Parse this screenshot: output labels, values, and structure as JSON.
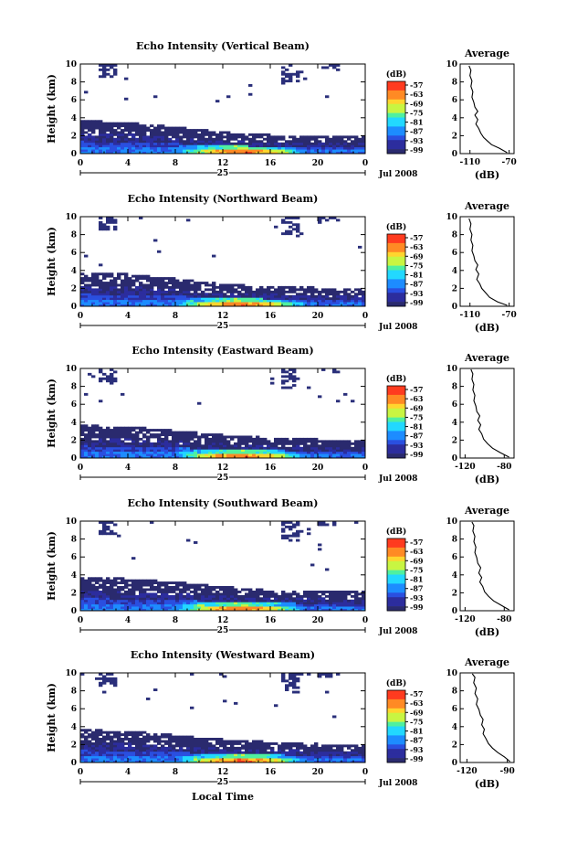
{
  "chart_data": [
    {
      "type": "heatmap",
      "title": "Echo Intensity (Vertical Beam)",
      "ylabel": "Height (km)",
      "x_ticks": [
        "0",
        "4",
        "8",
        "12",
        "16",
        "20",
        "0"
      ],
      "y_ticks": [
        "0",
        "2",
        "4",
        "6",
        "8",
        "10"
      ],
      "xlim": [
        0,
        24
      ],
      "ylim": [
        0,
        10
      ],
      "date_day": "25",
      "date_label": "Jul 2008",
      "colorbar": {
        "label": "(dB)",
        "ticks": [
          "-57",
          "-63",
          "-69",
          "-75",
          "-81",
          "-87",
          "-93",
          "-99"
        ]
      },
      "layer_tops_km": [
        3.6,
        3.4,
        2.9,
        2.3,
        2.0,
        2.0,
        2.0
      ],
      "average_profile": {
        "title": "Average",
        "xlabel": "(dB)",
        "x_ticks": [
          "-110",
          "-70"
        ],
        "y_ticks": [
          "0",
          "2",
          "4",
          "6",
          "8",
          "10"
        ],
        "xlim": [
          -120,
          -65
        ],
        "points": [
          [
            -72,
            0.1
          ],
          [
            -80,
            0.6
          ],
          [
            -88,
            1.0
          ],
          [
            -92,
            1.4
          ],
          [
            -96,
            1.8
          ],
          [
            -99,
            2.3
          ],
          [
            -101,
            2.8
          ],
          [
            -104,
            3.3
          ],
          [
            -102,
            3.8
          ],
          [
            -105,
            4.3
          ],
          [
            -102,
            4.7
          ],
          [
            -105,
            5.2
          ],
          [
            -106,
            5.7
          ],
          [
            -108,
            6.3
          ],
          [
            -107,
            6.9
          ],
          [
            -109,
            7.5
          ],
          [
            -108,
            8.1
          ],
          [
            -110,
            8.7
          ],
          [
            -109,
            9.3
          ],
          [
            -111,
            9.8
          ]
        ]
      }
    },
    {
      "type": "heatmap",
      "title": "Echo Intensity (Northward Beam)",
      "ylabel": "Height (km)",
      "x_ticks": [
        "0",
        "4",
        "8",
        "12",
        "16",
        "20",
        "0"
      ],
      "y_ticks": [
        "0",
        "2",
        "4",
        "6",
        "8",
        "10"
      ],
      "xlim": [
        0,
        24
      ],
      "ylim": [
        0,
        10
      ],
      "date_day": "25",
      "date_label": "Jul 2008",
      "colorbar": {
        "label": "(dB)",
        "ticks": [
          "-57",
          "-63",
          "-69",
          "-75",
          "-81",
          "-87",
          "-93",
          "-99"
        ]
      },
      "layer_tops_km": [
        3.6,
        3.5,
        3.0,
        2.4,
        2.1,
        2.0,
        1.9
      ],
      "average_profile": {
        "title": "Average",
        "xlabel": "(dB)",
        "x_ticks": [
          "-110",
          "-70"
        ],
        "y_ticks": [
          "0",
          "2",
          "4",
          "6",
          "8",
          "10"
        ],
        "xlim": [
          -120,
          -65
        ],
        "points": [
          [
            -72,
            0.1
          ],
          [
            -82,
            0.5
          ],
          [
            -90,
            1.0
          ],
          [
            -94,
            1.5
          ],
          [
            -98,
            2.0
          ],
          [
            -100,
            2.5
          ],
          [
            -103,
            3.0
          ],
          [
            -101,
            3.6
          ],
          [
            -104,
            4.1
          ],
          [
            -102,
            4.6
          ],
          [
            -105,
            5.1
          ],
          [
            -106,
            5.6
          ],
          [
            -108,
            6.2
          ],
          [
            -107,
            6.8
          ],
          [
            -109,
            7.4
          ],
          [
            -108,
            8.0
          ],
          [
            -110,
            8.6
          ],
          [
            -109,
            9.2
          ],
          [
            -111,
            9.8
          ]
        ]
      }
    },
    {
      "type": "heatmap",
      "title": "Echo Intensity (Eastward Beam)",
      "ylabel": "Height (km)",
      "x_ticks": [
        "0",
        "4",
        "8",
        "12",
        "16",
        "20",
        "0"
      ],
      "y_ticks": [
        "0",
        "2",
        "4",
        "6",
        "8",
        "10"
      ],
      "xlim": [
        0,
        24
      ],
      "ylim": [
        0,
        10
      ],
      "date_day": "25",
      "date_label": "Jul 2008",
      "colorbar": {
        "label": "(dB)",
        "ticks": [
          "-57",
          "-63",
          "-69",
          "-75",
          "-81",
          "-87",
          "-93",
          "-99"
        ]
      },
      "layer_tops_km": [
        3.6,
        3.4,
        3.0,
        2.5,
        2.2,
        2.0,
        2.0
      ],
      "average_profile": {
        "title": "Average",
        "xlabel": "(dB)",
        "x_ticks": [
          "-120",
          "-80"
        ],
        "y_ticks": [
          "0",
          "2",
          "4",
          "6",
          "8",
          "10"
        ],
        "xlim": [
          -125,
          -70
        ],
        "points": [
          [
            -75,
            0.1
          ],
          [
            -84,
            0.6
          ],
          [
            -92,
            1.1
          ],
          [
            -97,
            1.6
          ],
          [
            -101,
            2.1
          ],
          [
            -103,
            2.7
          ],
          [
            -106,
            3.2
          ],
          [
            -104,
            3.7
          ],
          [
            -107,
            4.2
          ],
          [
            -105,
            4.7
          ],
          [
            -108,
            5.2
          ],
          [
            -109,
            5.8
          ],
          [
            -111,
            6.4
          ],
          [
            -110,
            7.0
          ],
          [
            -112,
            7.6
          ],
          [
            -111,
            8.2
          ],
          [
            -113,
            8.8
          ],
          [
            -112,
            9.4
          ],
          [
            -114,
            9.9
          ]
        ]
      }
    },
    {
      "type": "heatmap",
      "title": "Echo Intensity (Southward Beam)",
      "ylabel": "Height (km)",
      "x_ticks": [
        "0",
        "4",
        "8",
        "12",
        "16",
        "20",
        "0"
      ],
      "y_ticks": [
        "0",
        "2",
        "4",
        "6",
        "8",
        "10"
      ],
      "xlim": [
        0,
        24
      ],
      "ylim": [
        0,
        10
      ],
      "date_day": "25",
      "date_label": "Jul 2008",
      "colorbar": {
        "label": "(dB)",
        "ticks": [
          "-57",
          "-63",
          "-69",
          "-75",
          "-81",
          "-87",
          "-93",
          "-99"
        ]
      },
      "layer_tops_km": [
        3.7,
        3.5,
        3.1,
        2.6,
        2.2,
        2.1,
        2.0
      ],
      "average_profile": {
        "title": "Average",
        "xlabel": "(dB)",
        "x_ticks": [
          "-120",
          "-80"
        ],
        "y_ticks": [
          "0",
          "2",
          "4",
          "6",
          "8",
          "10"
        ],
        "xlim": [
          -125,
          -70
        ],
        "points": [
          [
            -75,
            0.1
          ],
          [
            -83,
            0.6
          ],
          [
            -91,
            1.1
          ],
          [
            -96,
            1.6
          ],
          [
            -100,
            2.1
          ],
          [
            -102,
            2.7
          ],
          [
            -105,
            3.2
          ],
          [
            -103,
            3.7
          ],
          [
            -106,
            4.2
          ],
          [
            -104,
            4.8
          ],
          [
            -107,
            5.3
          ],
          [
            -108,
            5.9
          ],
          [
            -110,
            6.5
          ],
          [
            -109,
            7.1
          ],
          [
            -111,
            7.7
          ],
          [
            -110,
            8.3
          ],
          [
            -112,
            8.9
          ],
          [
            -111,
            9.5
          ],
          [
            -113,
            9.9
          ]
        ]
      }
    },
    {
      "type": "heatmap",
      "title": "Echo Intensity (Westward Beam)",
      "ylabel": "Height (km)",
      "xlabel": "Local Time",
      "x_ticks": [
        "0",
        "4",
        "8",
        "12",
        "16",
        "20",
        "0"
      ],
      "y_ticks": [
        "0",
        "2",
        "4",
        "6",
        "8",
        "10"
      ],
      "xlim": [
        0,
        24
      ],
      "ylim": [
        0,
        10
      ],
      "date_day": "25",
      "date_label": "Jul 2008",
      "colorbar": {
        "label": "(dB)",
        "ticks": [
          "-57",
          "-63",
          "-69",
          "-75",
          "-81",
          "-87",
          "-93",
          "-99"
        ]
      },
      "layer_tops_km": [
        3.6,
        3.4,
        3.0,
        2.5,
        2.2,
        2.0,
        2.0
      ],
      "average_profile": {
        "title": "Average",
        "xlabel": "(dB)",
        "x_ticks": [
          "-120",
          "-90"
        ],
        "y_ticks": [
          "0",
          "2",
          "4",
          "6",
          "8",
          "10"
        ],
        "xlim": [
          -125,
          -85
        ],
        "points": [
          [
            -88,
            0.1
          ],
          [
            -92,
            0.6
          ],
          [
            -97,
            1.1
          ],
          [
            -101,
            1.6
          ],
          [
            -104,
            2.1
          ],
          [
            -106,
            2.7
          ],
          [
            -108,
            3.2
          ],
          [
            -107,
            3.7
          ],
          [
            -109,
            4.2
          ],
          [
            -108,
            4.8
          ],
          [
            -110,
            5.3
          ],
          [
            -111,
            5.9
          ],
          [
            -113,
            6.5
          ],
          [
            -112,
            7.1
          ],
          [
            -114,
            7.7
          ],
          [
            -113,
            8.3
          ],
          [
            -115,
            8.9
          ],
          [
            -114,
            9.5
          ],
          [
            -116,
            9.9
          ]
        ]
      }
    }
  ],
  "colors": {
    "scale": [
      "#ff3b1f",
      "#ff8a24",
      "#ffd52e",
      "#c8f542",
      "#4ff0a0",
      "#22d8ff",
      "#1d8cff",
      "#2a4fe0",
      "#2c2d9e",
      "#2a2a6e"
    ],
    "sparse": "#2a2f7a"
  }
}
